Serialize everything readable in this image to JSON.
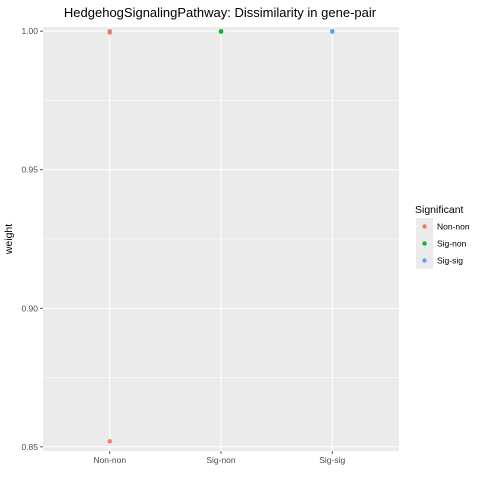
{
  "chart_data": {
    "type": "scatter",
    "title": "HedgehogSignalingPathway: Dissimilarity in gene-pair",
    "xlabel": "",
    "ylabel": "weight",
    "categories": [
      "Non-non",
      "Sig-non",
      "Sig-sig"
    ],
    "ylim": [
      0.8485,
      1.0015
    ],
    "yticks": [
      0.85,
      0.9,
      0.95,
      1.0
    ],
    "ytick_labels": [
      "0.85",
      "0.90",
      "0.95",
      "1.00"
    ],
    "grid": true,
    "legend": {
      "title": "Significant",
      "position": "right",
      "entries": [
        "Non-non",
        "Sig-non",
        "Sig-sig"
      ]
    },
    "colors": {
      "Non-non": "#F8766D",
      "Sig-non": "#00BA38",
      "Sig-sig": "#619CFF",
      "panel": "#EBEBEB",
      "grid": "#FFFFFF"
    },
    "series": [
      {
        "name": "Non-non",
        "x": [
          "Non-non",
          "Non-non",
          "Non-non"
        ],
        "y": [
          1.0,
          0.9995,
          0.852
        ]
      },
      {
        "name": "Sig-non",
        "x": [
          "Sig-non",
          "Sig-non"
        ],
        "y": [
          1.0,
          0.9998
        ]
      },
      {
        "name": "Sig-sig",
        "x": [
          "Sig-sig",
          "Sig-sig"
        ],
        "y": [
          1.0,
          0.9998
        ]
      }
    ]
  }
}
